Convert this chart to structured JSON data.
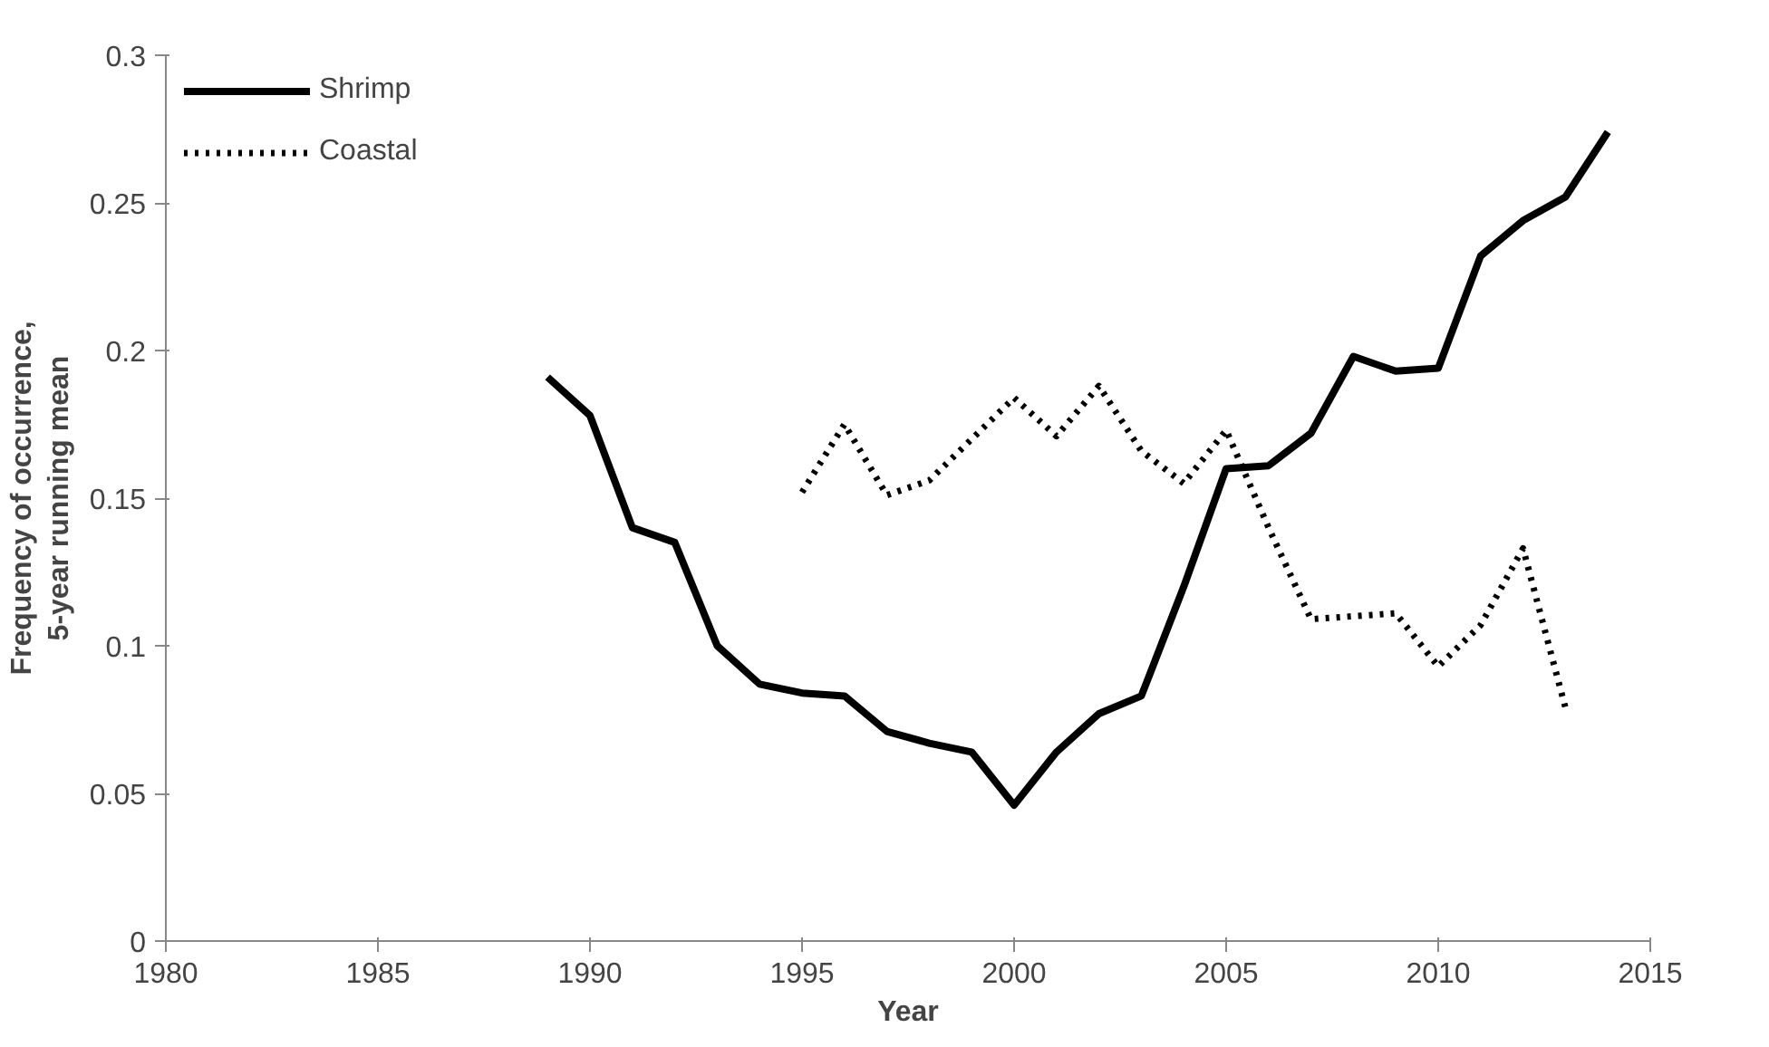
{
  "chart_data": {
    "type": "line",
    "xlabel": "Year",
    "ylabel": "Frequency of occurrence, 5-year running mean",
    "xlim": [
      1980,
      2015
    ],
    "xticks": [
      1980,
      1985,
      1990,
      1995,
      2000,
      2005,
      2010,
      2015
    ],
    "ylim": [
      0,
      0.3
    ],
    "yticks": [
      0,
      0.05,
      0.1,
      0.15,
      0.2,
      0.25,
      0.3
    ],
    "grid": false,
    "legend": "top left",
    "marker": "none",
    "series": [
      {
        "name": "Shrimp",
        "color": "#000000",
        "line_style": "solid",
        "x": [
          1989,
          1990,
          1991,
          1992,
          1993,
          1994,
          1995,
          1996,
          1997,
          1998,
          1999,
          2000,
          2001,
          2002,
          2003,
          2004,
          2005,
          2006,
          2007,
          2008,
          2009,
          2010,
          2011,
          2012,
          2013,
          2014
        ],
        "values": [
          0.191,
          0.178,
          0.14,
          0.135,
          0.1,
          0.087,
          0.084,
          0.083,
          0.071,
          0.067,
          0.064,
          0.046,
          0.064,
          0.077,
          0.083,
          0.12,
          0.16,
          0.161,
          0.172,
          0.198,
          0.193,
          0.194,
          0.232,
          0.244,
          0.252,
          0.274
        ]
      },
      {
        "name": "Coastal",
        "color": "#000000",
        "line_style": "dotted",
        "x": [
          1995,
          1996,
          1997,
          1998,
          1999,
          2000,
          2001,
          2002,
          2003,
          2004,
          2005,
          2006,
          2007,
          2008,
          2009,
          2010,
          2011,
          2012,
          2013
        ],
        "values": [
          0.152,
          0.175,
          0.151,
          0.156,
          0.17,
          0.184,
          0.171,
          0.188,
          0.166,
          0.155,
          0.173,
          0.14,
          0.109,
          0.11,
          0.111,
          0.093,
          0.107,
          0.133,
          0.079
        ]
      }
    ]
  }
}
